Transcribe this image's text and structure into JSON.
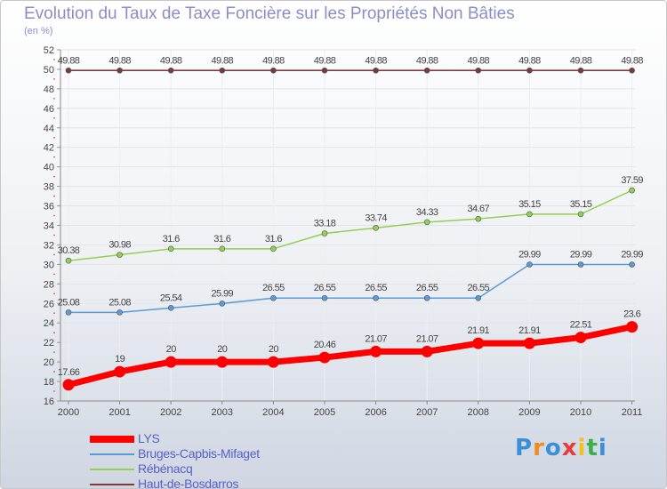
{
  "header": {
    "title": "Evolution du Taux de Taxe Foncière sur les Propriétés Non Bâties",
    "subtitle": "(en %)"
  },
  "logo": {
    "text": "Proxiti",
    "letters": [
      "P",
      "r",
      "o",
      "x",
      "i",
      "t",
      "i"
    ],
    "colors": [
      "#3a8fd8",
      "#f08c1e",
      "#3a8fd8",
      "#e83c3c",
      "#f0c21e",
      "#3ab04a",
      "#3a8fd8"
    ]
  },
  "chart_data": {
    "type": "line",
    "title": "Evolution du Taux de Taxe Foncière sur les Propriétés Non Bâties",
    "ylabel": "(en %)",
    "xlabel": "",
    "ylim": [
      16,
      52
    ],
    "yticks": [
      16,
      18,
      20,
      22,
      24,
      26,
      28,
      30,
      32,
      34,
      36,
      38,
      40,
      42,
      44,
      46,
      48,
      50,
      52
    ],
    "categories": [
      "2000",
      "2001",
      "2002",
      "2003",
      "2004",
      "2005",
      "2006",
      "2007",
      "2008",
      "2009",
      "2010",
      "2011"
    ],
    "series": [
      {
        "name": "LYS",
        "color": "#ff0000",
        "values": [
          17.66,
          19,
          20,
          20,
          20,
          20.46,
          21.07,
          21.07,
          21.91,
          21.91,
          22.51,
          23.6
        ],
        "labels": [
          "17.66",
          "19",
          "20",
          "20",
          "20",
          "20.46",
          "21.07",
          "21.07",
          "21.91",
          "21.91",
          "22.51",
          "23.6"
        ]
      },
      {
        "name": "Bruges-Capbis-Mifaget",
        "color": "#5b9bd5",
        "values": [
          25.08,
          25.08,
          25.54,
          25.99,
          26.55,
          26.55,
          26.55,
          26.55,
          26.55,
          29.99,
          29.99,
          29.99
        ],
        "labels": [
          "25.08",
          "25.08",
          "25.54",
          "25.99",
          "26.55",
          "26.55",
          "26.55",
          "26.55",
          "26.55",
          "29.99",
          "29.99",
          "29.99"
        ]
      },
      {
        "name": "Rébénacq",
        "color": "#92d050",
        "values": [
          30.38,
          30.98,
          31.6,
          31.6,
          31.6,
          33.18,
          33.74,
          34.33,
          34.67,
          35.15,
          35.15,
          37.59
        ],
        "labels": [
          "30.38",
          "30.98",
          "31.6",
          "31.6",
          "31.6",
          "33.18",
          "33.74",
          "34.33",
          "34.67",
          "35.15",
          "35.15",
          "37.59"
        ]
      },
      {
        "name": "Haut-de-Bosdarros",
        "color": "#7a3b3b",
        "values": [
          49.88,
          49.88,
          49.88,
          49.88,
          49.88,
          49.88,
          49.88,
          49.88,
          49.88,
          49.88,
          49.88,
          49.88
        ],
        "labels": [
          "49.88",
          "49.88",
          "49.88",
          "49.88",
          "49.88",
          "49.88",
          "49.88",
          "49.88",
          "49.88",
          "49.88",
          "49.88",
          "49.88"
        ]
      }
    ],
    "legend_position": "bottom-left",
    "grid": true
  }
}
